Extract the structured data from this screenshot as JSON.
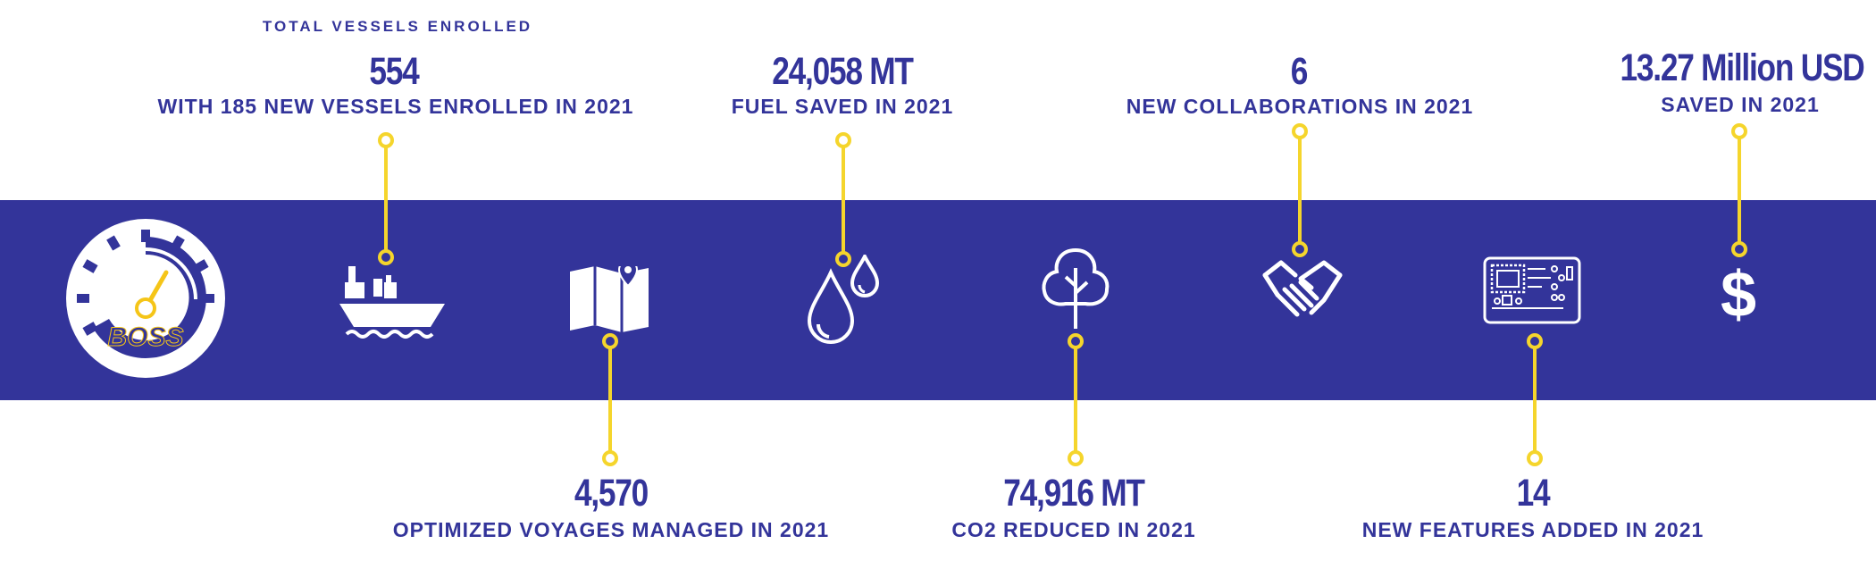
{
  "logo": {
    "text": "BOSS"
  },
  "stats": {
    "vessels": {
      "caption": "TOTAL VESSELS ENROLLED",
      "value": "554",
      "label": "WITH 185 NEW VESSELS ENROLLED IN 2021"
    },
    "voyages": {
      "value": "4,570",
      "label": "OPTIMIZED VOYAGES MANAGED IN 2021"
    },
    "fuel": {
      "value": "24,058 MT",
      "label": "FUEL SAVED IN 2021"
    },
    "co2": {
      "value": "74,916 MT",
      "label": "CO2 REDUCED IN 2021"
    },
    "collaborations": {
      "value": "6",
      "label": "NEW COLLABORATIONS IN 2021"
    },
    "features": {
      "value": "14",
      "label": "NEW FEATURES ADDED IN 2021"
    },
    "savings": {
      "value": "13.27 Million USD",
      "label": "SAVED IN 2021"
    }
  },
  "icons": [
    "speedometer-icon",
    "ship-icon",
    "map-icon",
    "droplets-icon",
    "tree-icon",
    "handshake-icon",
    "circuit-board-icon",
    "dollar-icon"
  ],
  "colors": {
    "band": "#33349a",
    "text": "#33349a",
    "connector": "#f5d52c",
    "icon": "#ffffff",
    "logo_accent": "#f5c518"
  }
}
